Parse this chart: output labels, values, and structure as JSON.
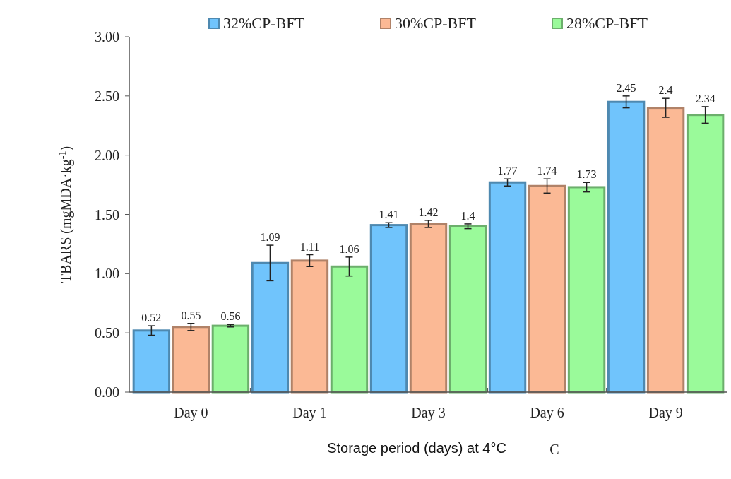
{
  "chart_data": {
    "type": "bar",
    "ylabel": "TBARS (mgMDA·kg$^{-1}$)",
    "xlabel": "Storage period (days) at 4°C",
    "annotations": [
      "C"
    ],
    "categories": [
      "Day 0",
      "Day 1",
      "Day 3",
      "Day 6",
      "Day 9"
    ],
    "series": [
      {
        "name": "32%CP-BFT",
        "color": "#70c4fc",
        "values": [
          0.52,
          1.09,
          1.41,
          1.77,
          2.45
        ],
        "errors": [
          0.04,
          0.15,
          0.02,
          0.03,
          0.05
        ]
      },
      {
        "name": "30%CP-BFT",
        "color": "#fbb995",
        "values": [
          0.55,
          1.11,
          1.42,
          1.74,
          2.4
        ],
        "errors": [
          0.03,
          0.05,
          0.03,
          0.06,
          0.08
        ]
      },
      {
        "name": "28%CP-BFT",
        "color": "#9afa9a",
        "values": [
          0.56,
          1.06,
          1.4,
          1.73,
          2.34
        ],
        "errors": [
          0.01,
          0.08,
          0.02,
          0.04,
          0.07
        ]
      }
    ],
    "ylim": [
      0,
      3
    ],
    "yticks": [
      {
        "value": 0,
        "label": "0.00"
      },
      {
        "value": 0.5,
        "label": "0.50"
      },
      {
        "value": 1,
        "label": "1.00"
      },
      {
        "value": 1.5,
        "label": "1.50"
      },
      {
        "value": 2,
        "label": "2.00"
      },
      {
        "value": 2.5,
        "label": "2.50"
      },
      {
        "value": 3,
        "label": "3.00"
      }
    ],
    "data_labels": true,
    "legend": "top",
    "grid": false
  }
}
